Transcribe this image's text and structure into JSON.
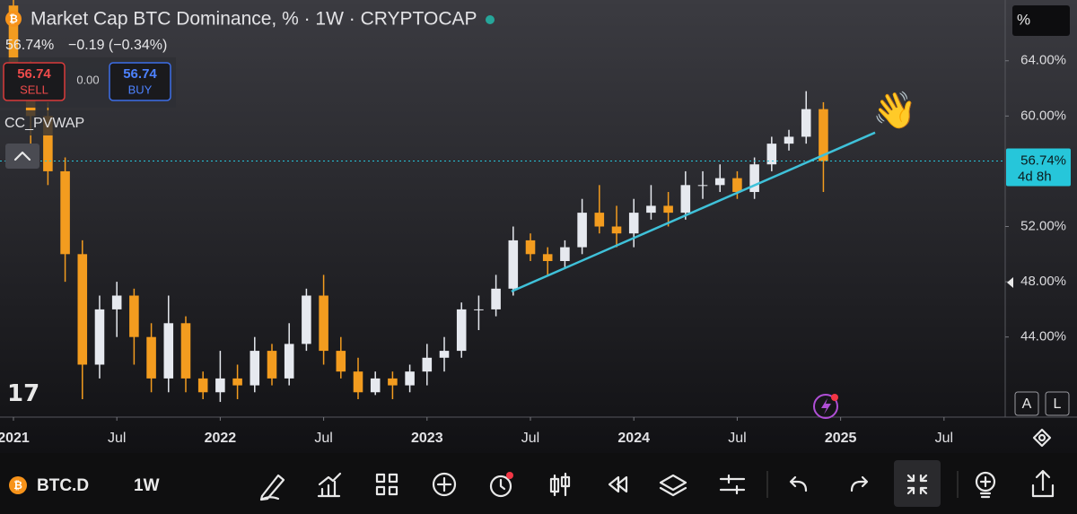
{
  "header": {
    "title": "Market Cap BTC Dominance, % · 1W · CRYPTOCAP",
    "last": "56.74%",
    "change": "−0.19 (−0.34%)",
    "sell_price": "56.74",
    "sell": "SELL",
    "spread": "0.00",
    "buy_price": "56.74",
    "buy": "BUY",
    "indicator": "CC_PVWAP",
    "scale_mode": "%",
    "auto": "A",
    "log": "L"
  },
  "chart_data": {
    "type": "candlestick",
    "x": [
      0,
      1,
      2,
      3,
      4,
      5,
      6,
      7,
      8,
      9,
      10,
      11,
      12,
      13,
      14,
      15,
      16,
      17,
      18,
      19,
      20,
      21,
      22,
      23,
      24,
      25,
      26,
      27,
      28,
      29,
      30,
      31,
      32,
      33,
      34,
      35,
      36,
      37,
      38,
      39,
      40,
      41,
      42,
      43,
      44,
      45,
      46,
      47
    ],
    "open": [
      68,
      63,
      60,
      56,
      50,
      42,
      46,
      47,
      44,
      41,
      45,
      41,
      40,
      41,
      40.5,
      43,
      41,
      43.5,
      47,
      43,
      41.5,
      40,
      41,
      40.5,
      41.5,
      42.5,
      43,
      46,
      46,
      47.5,
      51,
      50,
      49.5,
      50.5,
      53,
      52,
      51.5,
      53,
      53.5,
      53,
      55,
      55,
      55.5,
      54.5,
      56.5,
      58,
      58.5,
      60.5
    ],
    "high": [
      68.4,
      64,
      61,
      57,
      51,
      47,
      48,
      47.5,
      45,
      47,
      45.5,
      41.5,
      43,
      42,
      44,
      43.5,
      45,
      47.5,
      48.5,
      44,
      42.5,
      41.5,
      41.5,
      42,
      43.5,
      44,
      46.5,
      47,
      48.5,
      52,
      51.5,
      50.5,
      51,
      54,
      55,
      53.5,
      54,
      55,
      54.5,
      56,
      56,
      56.5,
      56,
      57,
      58.5,
      59,
      61.8,
      61
    ],
    "low": [
      62,
      58,
      55,
      48,
      39.5,
      41,
      44,
      42,
      40,
      40,
      40,
      39.5,
      39.3,
      39.5,
      40,
      40.5,
      40.5,
      43,
      42,
      41,
      39.5,
      39.8,
      39.5,
      40,
      40.5,
      41.5,
      42.5,
      44.5,
      45.5,
      47,
      49.5,
      48.5,
      49,
      50,
      51.5,
      50.5,
      50.5,
      52.5,
      52,
      52.5,
      54,
      54.5,
      54,
      54,
      56,
      57.5,
      58,
      54.5
    ],
    "close": [
      63,
      60,
      56,
      50,
      42,
      46,
      47,
      44,
      41,
      45,
      41,
      40,
      41,
      40.5,
      43,
      41,
      43.5,
      47,
      43,
      41.5,
      40,
      41,
      40.5,
      41.5,
      42.5,
      43,
      46,
      46,
      47.5,
      51,
      50,
      49.5,
      50.5,
      53,
      52,
      51.5,
      53,
      53.5,
      53,
      55,
      55,
      55.5,
      54.5,
      56.5,
      58,
      58.5,
      60.5,
      56.74
    ],
    "up_color": "#e6e9ef",
    "down_color": "#f39c1f",
    "xlim": [
      -0.78,
      57.55
    ],
    "xticks": [
      {
        "value": 0,
        "label": "2021"
      },
      {
        "value": 6,
        "label": "Jul"
      },
      {
        "value": 12,
        "label": "2022"
      },
      {
        "value": 18,
        "label": "Jul"
      },
      {
        "value": 24,
        "label": "2023"
      },
      {
        "value": 30,
        "label": "Jul"
      },
      {
        "value": 36,
        "label": "2024"
      },
      {
        "value": 42,
        "label": "Jul"
      },
      {
        "value": 48,
        "label": "2025"
      },
      {
        "value": 54,
        "label": "Jul"
      }
    ],
    "ylim": [
      38.2,
      68.4
    ],
    "yticks": [
      {
        "value": 44,
        "label": "44.00%"
      },
      {
        "value": 48,
        "label": "48.00%"
      },
      {
        "value": 52,
        "label": "52.00%"
      },
      {
        "value": 60,
        "label": "60.00%"
      },
      {
        "value": 64,
        "label": "64.00%"
      }
    ],
    "last_price": {
      "value": 56.74,
      "label": "56.74%",
      "countdown": "4d 8h",
      "color": "#26c6da"
    },
    "trendline": {
      "x": [
        28.9,
        50.0
      ],
      "y": [
        47.3,
        58.8
      ],
      "color": "#3fc1d9"
    }
  },
  "toolbar": {
    "symbol": "BTC.D",
    "interval": "1W"
  }
}
